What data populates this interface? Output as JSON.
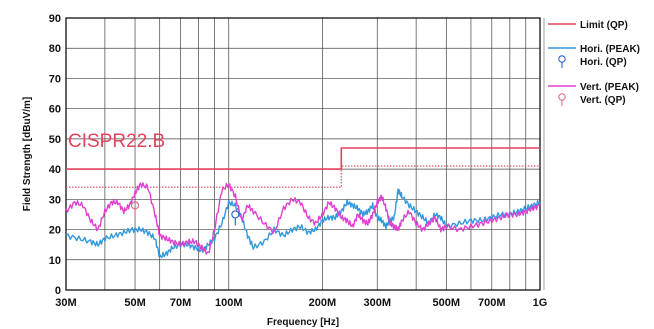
{
  "chart_data": {
    "type": "line",
    "title": "",
    "xlabel": "Frequency [Hz]",
    "ylabel": "Field Strength [dBuV/m]",
    "x_scale": "log",
    "xlim_mhz": [
      30,
      1000
    ],
    "ylim": [
      0,
      90
    ],
    "grid": true,
    "legend_position": "right",
    "x_ticks": [
      {
        "value_mhz": 30,
        "label": "30M"
      },
      {
        "value_mhz": 50,
        "label": "50M"
      },
      {
        "value_mhz": 70,
        "label": "70M"
      },
      {
        "value_mhz": 100,
        "label": "100M"
      },
      {
        "value_mhz": 200,
        "label": "200M"
      },
      {
        "value_mhz": 300,
        "label": "300M"
      },
      {
        "value_mhz": 500,
        "label": "500M"
      },
      {
        "value_mhz": 700,
        "label": "700M"
      },
      {
        "value_mhz": 1000,
        "label": "1G"
      }
    ],
    "x_minor_grid_mhz": [
      40,
      60,
      80,
      90,
      400,
      600,
      800,
      900
    ],
    "y_ticks": [
      0,
      10,
      20,
      30,
      40,
      50,
      60,
      70,
      80,
      90
    ],
    "annotation": "CISPR22.B",
    "legend": [
      {
        "label": "Limit (QP)",
        "kind": "line",
        "color": "#e0435c"
      },
      {
        "label": "Hori. (PEAK)",
        "kind": "line",
        "color": "#3399dd"
      },
      {
        "label": "Hori. (QP)",
        "kind": "marker",
        "color": "#3366cc"
      },
      {
        "label": "Vert. (PEAK)",
        "kind": "line",
        "color": "#e040d0"
      },
      {
        "label": "Vert. (QP)",
        "kind": "marker",
        "color": "#e26b8f"
      }
    ],
    "limits": [
      {
        "style": "solid",
        "color": "#e0435c",
        "points": [
          [
            30,
            40
          ],
          [
            230,
            40
          ],
          [
            230,
            47
          ],
          [
            1000,
            47
          ]
        ]
      },
      {
        "style": "dotted",
        "color": "#e0435c",
        "points": [
          [
            30,
            34
          ],
          [
            230,
            34
          ],
          [
            230,
            41
          ],
          [
            1000,
            41
          ]
        ]
      }
    ],
    "series": [
      {
        "style": "line",
        "color": "#3399dd",
        "x": [
          30,
          33,
          36,
          38,
          40,
          43,
          46,
          49,
          52,
          55,
          58,
          60,
          63,
          66,
          70,
          74,
          78,
          82,
          86,
          90,
          95,
          100,
          105,
          110,
          115,
          120,
          130,
          140,
          150,
          160,
          170,
          180,
          190,
          200,
          210,
          220,
          230,
          240,
          250,
          260,
          270,
          280,
          290,
          300,
          310,
          320,
          330,
          340,
          350,
          360,
          380,
          400,
          420,
          440,
          460,
          480,
          500,
          550,
          600,
          650,
          700,
          750,
          800,
          850,
          900,
          950,
          1000
        ],
        "y": [
          18,
          17,
          16,
          15,
          17,
          18,
          19,
          20,
          20,
          19,
          17,
          11,
          12,
          14,
          15,
          15,
          14,
          13,
          15,
          17,
          22,
          29,
          28,
          24,
          18,
          14,
          16,
          20,
          18,
          20,
          21,
          19,
          20,
          23,
          24,
          24,
          26,
          29,
          28,
          27,
          25,
          26,
          28,
          24,
          23,
          21,
          23,
          24,
          33,
          31,
          28,
          26,
          24,
          22,
          25,
          24,
          21,
          22,
          23,
          23,
          24,
          25,
          25,
          26,
          27,
          28,
          29
        ]
      },
      {
        "style": "line",
        "color": "#e040d0",
        "x": [
          30,
          32,
          34,
          36,
          38,
          40,
          42,
          44,
          46,
          48,
          50,
          52,
          55,
          58,
          60,
          63,
          66,
          70,
          74,
          78,
          82,
          86,
          90,
          95,
          100,
          105,
          110,
          115,
          120,
          130,
          140,
          150,
          160,
          170,
          180,
          190,
          200,
          210,
          220,
          230,
          240,
          250,
          260,
          270,
          280,
          290,
          300,
          310,
          320,
          330,
          340,
          350,
          360,
          380,
          400,
          420,
          440,
          460,
          480,
          500,
          550,
          600,
          650,
          700,
          750,
          800,
          850,
          900,
          950,
          1000
        ],
        "y": [
          26,
          29,
          28,
          23,
          20,
          26,
          29,
          29,
          26,
          28,
          32,
          35,
          34,
          25,
          18,
          17,
          16,
          15,
          16,
          16,
          14,
          12,
          20,
          33,
          35,
          31,
          23,
          28,
          26,
          22,
          19,
          27,
          30,
          29,
          24,
          22,
          25,
          29,
          27,
          24,
          23,
          21,
          25,
          23,
          22,
          25,
          29,
          31,
          27,
          22,
          21,
          20,
          23,
          26,
          22,
          20,
          22,
          24,
          20,
          21,
          20,
          21,
          22,
          23,
          24,
          25,
          25,
          26,
          27,
          28
        ]
      }
    ],
    "markers": [
      {
        "series": "Hori. (QP)",
        "x": 105,
        "y": 25,
        "color": "#3366cc"
      },
      {
        "series": "Vert. (QP)",
        "x": 50,
        "y": 28,
        "color": "#e26b8f"
      }
    ]
  }
}
